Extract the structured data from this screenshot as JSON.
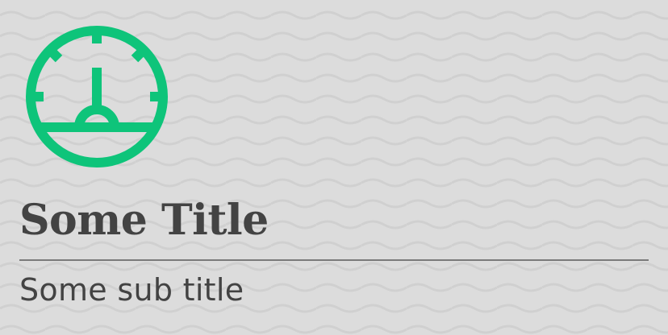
{
  "colors": {
    "background": "#dcdcdc",
    "wave_pattern": "#d0d0d0",
    "accent": "#0ec47a",
    "text": "#434343",
    "divider": "#7a7a7a"
  },
  "icon": {
    "name": "gauge-icon"
  },
  "title": "Some Title",
  "subtitle": "Some sub title"
}
